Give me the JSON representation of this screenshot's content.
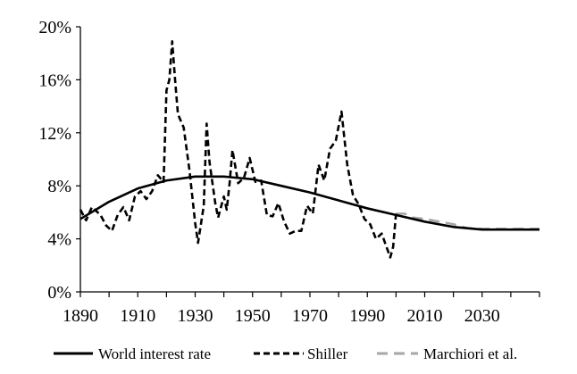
{
  "chart_data": {
    "type": "line",
    "xlim": [
      1890,
      2050
    ],
    "ylim": [
      0,
      20
    ],
    "x_ticks": [
      1890,
      1910,
      1930,
      1950,
      1970,
      1990,
      2010,
      2030
    ],
    "y_ticks": [
      0,
      4,
      8,
      12,
      16,
      20
    ],
    "x_tick_labels": [
      "1890",
      "1910",
      "1930",
      "1950",
      "1970",
      "1990",
      "2010",
      "2030"
    ],
    "y_tick_labels": [
      "0%",
      "4%",
      "8%",
      "12%",
      "16%",
      "20%"
    ],
    "grid": false,
    "legend_position": "bottom",
    "series": [
      {
        "name": "World interest rate",
        "style": "solid",
        "color": "#000000",
        "points": [
          [
            1890,
            5.5
          ],
          [
            1900,
            6.8
          ],
          [
            1910,
            7.8
          ],
          [
            1920,
            8.4
          ],
          [
            1930,
            8.7
          ],
          [
            1940,
            8.7
          ],
          [
            1950,
            8.5
          ],
          [
            1960,
            8.0
          ],
          [
            1970,
            7.5
          ],
          [
            1980,
            6.9
          ],
          [
            1990,
            6.3
          ],
          [
            2000,
            5.8
          ],
          [
            2010,
            5.3
          ],
          [
            2020,
            4.9
          ],
          [
            2030,
            4.7
          ],
          [
            2040,
            4.7
          ],
          [
            2050,
            4.7
          ]
        ]
      },
      {
        "name": "Shiller",
        "style": "dashed",
        "color": "#000000",
        "points": [
          [
            1890,
            6.2
          ],
          [
            1892,
            5.4
          ],
          [
            1894,
            6.4
          ],
          [
            1897,
            5.8
          ],
          [
            1899,
            5.0
          ],
          [
            1901,
            4.6
          ],
          [
            1903,
            5.8
          ],
          [
            1905,
            6.4
          ],
          [
            1907,
            5.4
          ],
          [
            1909,
            7.2
          ],
          [
            1911,
            7.6
          ],
          [
            1913,
            7.0
          ],
          [
            1915,
            7.6
          ],
          [
            1917,
            8.8
          ],
          [
            1919,
            8.3
          ],
          [
            1920,
            15.2
          ],
          [
            1921,
            16.0
          ],
          [
            1922,
            18.9
          ],
          [
            1923,
            16.0
          ],
          [
            1924,
            13.4
          ],
          [
            1926,
            12.4
          ],
          [
            1928,
            9.2
          ],
          [
            1930,
            5.2
          ],
          [
            1931,
            3.7
          ],
          [
            1933,
            6.5
          ],
          [
            1934,
            12.7
          ],
          [
            1935,
            9.8
          ],
          [
            1937,
            6.7
          ],
          [
            1938,
            5.6
          ],
          [
            1940,
            7.2
          ],
          [
            1941,
            6.2
          ],
          [
            1942,
            8.2
          ],
          [
            1943,
            10.7
          ],
          [
            1945,
            8.2
          ],
          [
            1947,
            8.6
          ],
          [
            1949,
            10.1
          ],
          [
            1951,
            8.3
          ],
          [
            1953,
            8.4
          ],
          [
            1955,
            5.8
          ],
          [
            1957,
            5.7
          ],
          [
            1959,
            6.7
          ],
          [
            1961,
            5.3
          ],
          [
            1963,
            4.4
          ],
          [
            1965,
            4.6
          ],
          [
            1967,
            4.6
          ],
          [
            1969,
            6.5
          ],
          [
            1971,
            5.9
          ],
          [
            1973,
            9.6
          ],
          [
            1975,
            8.4
          ],
          [
            1977,
            10.8
          ],
          [
            1979,
            11.4
          ],
          [
            1981,
            13.6
          ],
          [
            1983,
            9.6
          ],
          [
            1985,
            7.3
          ],
          [
            1987,
            6.6
          ],
          [
            1989,
            5.5
          ],
          [
            1991,
            5.1
          ],
          [
            1993,
            4.0
          ],
          [
            1995,
            4.4
          ],
          [
            1998,
            2.6
          ],
          [
            1999,
            3.4
          ],
          [
            2000,
            5.9
          ]
        ]
      },
      {
        "name": "Marchiori et al.",
        "style": "dashed",
        "color": "#a6a6a6",
        "points": [
          [
            2000,
            5.9
          ],
          [
            2003,
            5.9
          ],
          [
            2006,
            5.6
          ],
          [
            2010,
            5.5
          ],
          [
            2015,
            5.3
          ],
          [
            2020,
            5.1
          ],
          [
            2025,
            4.8
          ],
          [
            2030,
            4.75
          ],
          [
            2040,
            4.75
          ],
          [
            2050,
            4.75
          ]
        ]
      }
    ]
  }
}
